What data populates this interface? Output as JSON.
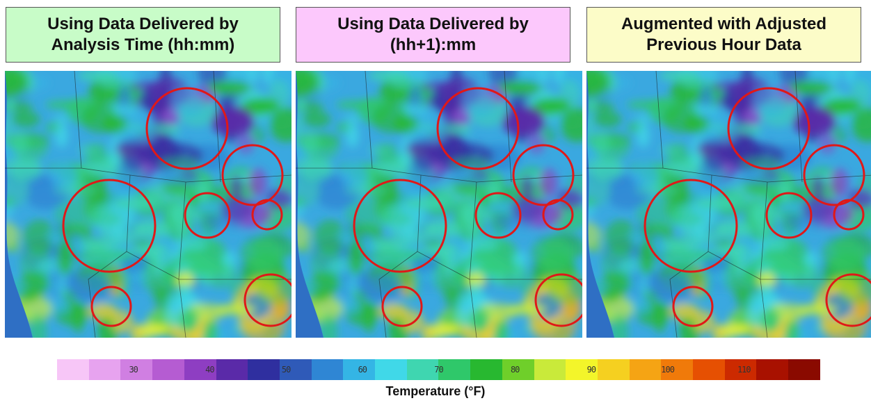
{
  "panels": [
    {
      "title": "Using Data Delivered by\nAnalysis Time (hh:mm)",
      "bg": "#c8fcc8"
    },
    {
      "title": "Using Data Delivered by\n(hh+1):mm",
      "bg": "#fcc8fc"
    },
    {
      "title": "Augmented with Adjusted\nPrevious Hour Data",
      "bg": "#fcfcc8"
    }
  ],
  "colorbar": {
    "label": "Temperature (°F)",
    "ticks": [
      "30",
      "40",
      "50",
      "60",
      "70",
      "80",
      "90",
      "100",
      "110"
    ],
    "range": [
      20,
      120
    ],
    "colors": [
      "#f7c6f7",
      "#e7a3ef",
      "#d07fe2",
      "#b55cd2",
      "#8e3ec2",
      "#5a2aa8",
      "#2f2f9f",
      "#2f5ab8",
      "#2f86d4",
      "#34b5e5",
      "#40d8e8",
      "#3fd6b0",
      "#2fc86a",
      "#28b830",
      "#6fcf2a",
      "#c9ea3a",
      "#f3f52a",
      "#f5d020",
      "#f5a414",
      "#f07a0a",
      "#e65002",
      "#cc2a00",
      "#a81100",
      "#8a0a00"
    ],
    "hot_accent": "#ffff80",
    "cold_accent": "#6a2ec4",
    "warm_accent": "#6fd84a"
  },
  "map": {
    "ocean_color": "#2f6fc4",
    "land_base": "#3aa8e0",
    "circle_color": "#e01818",
    "boundary_color": "#1a1a1a"
  }
}
